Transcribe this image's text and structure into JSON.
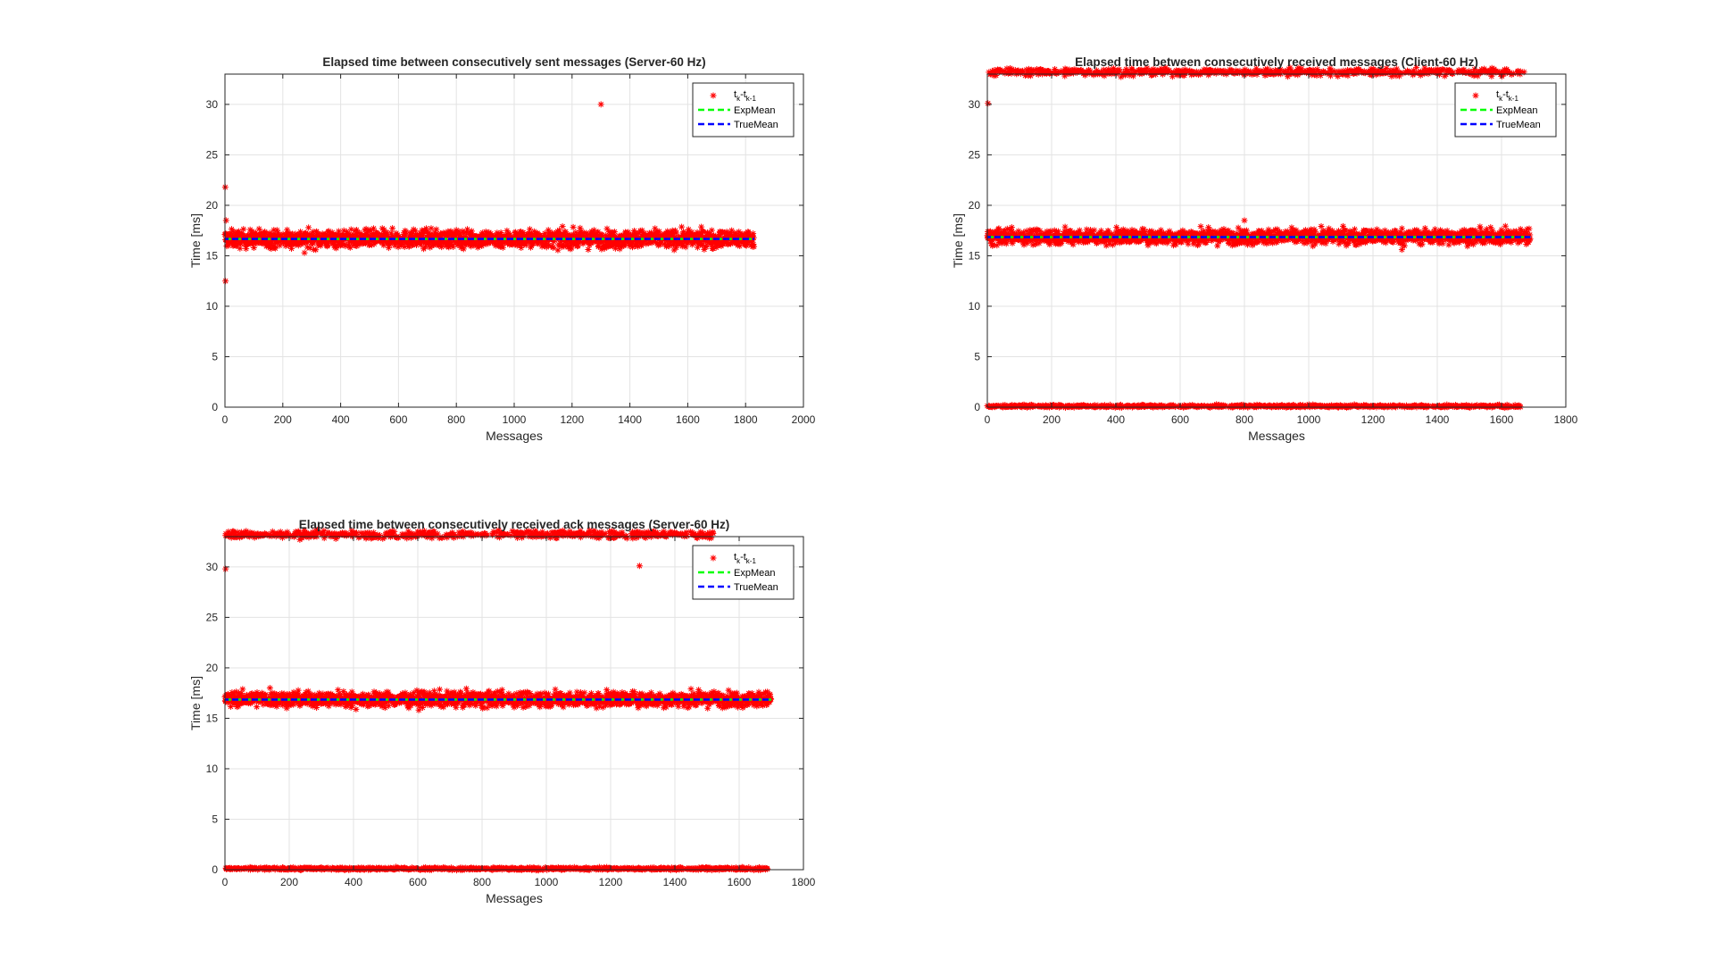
{
  "chart_data": [
    {
      "type": "scatter",
      "title": "Elapsed time between consecutively sent messages (Server-60 Hz)",
      "xlabel": "Messages",
      "ylabel": "Time [ms]",
      "xlim": [
        0,
        2000
      ],
      "ylim": [
        0,
        33
      ],
      "xticks": [
        "0",
        "200",
        "400",
        "600",
        "800",
        "1000",
        "1200",
        "1400",
        "1600",
        "1800",
        "2000"
      ],
      "yticks": [
        "0",
        "5",
        "10",
        "15",
        "20",
        "25",
        "30"
      ],
      "grid": true,
      "legend": {
        "placement": "top-right",
        "entries": [
          {
            "label": "t",
            "sub": "k",
            "label2": "-t",
            "sub2": "k-1"
          },
          {
            "label": "ExpMean"
          },
          {
            "label": "TrueMean"
          }
        ]
      },
      "colors": {
        "points": "#ff0000",
        "exp_mean": "#00ff00",
        "true_mean": "#0000ff"
      },
      "n_points": 1830,
      "bands": [
        {
          "center": 16.67,
          "spread": 0.7
        }
      ],
      "outliers": [
        {
          "x": 1,
          "y": 21.8
        },
        {
          "x": 2,
          "y": 12.5
        },
        {
          "x": 4,
          "y": 18.5
        },
        {
          "x": 275,
          "y": 15.3
        },
        {
          "x": 1300,
          "y": 30.0
        }
      ],
      "exp_mean": 16.67,
      "true_mean": 16.67,
      "mean_x_range": [
        0,
        1830
      ]
    },
    {
      "type": "scatter",
      "title": "Elapsed time between consecutively received messages (Client-60 Hz)",
      "xlabel": "Messages",
      "ylabel": "Time [ms]",
      "xlim": [
        0,
        1800
      ],
      "ylim": [
        0,
        33
      ],
      "xticks": [
        "0",
        "200",
        "400",
        "600",
        "800",
        "1000",
        "1200",
        "1400",
        "1600",
        "1800"
      ],
      "yticks": [
        "0",
        "5",
        "10",
        "15",
        "20",
        "25",
        "30"
      ],
      "grid": true,
      "legend": {
        "placement": "top-right",
        "entries": [
          {
            "label": "t",
            "sub": "k",
            "label2": "-t",
            "sub2": "k-1"
          },
          {
            "label": "ExpMean"
          },
          {
            "label": "TrueMean"
          }
        ]
      },
      "colors": {
        "points": "#ff0000",
        "exp_mean": "#00ff00",
        "true_mean": "#0000ff"
      },
      "n_points": 1690,
      "bands": [
        {
          "center": 33.2,
          "spread": 0.3,
          "x_max": 1660,
          "density": 0.35
        },
        {
          "center": 16.9,
          "spread": 0.6
        },
        {
          "center": 0.1,
          "spread": 0.1,
          "x_max": 1660,
          "density": 0.45
        }
      ],
      "outliers": [
        {
          "x": 2,
          "y": 30.1
        },
        {
          "x": 800,
          "y": 18.5
        },
        {
          "x": 1290,
          "y": 15.6
        },
        {
          "x": 1670,
          "y": 33.2
        }
      ],
      "exp_mean": 16.85,
      "true_mean": 16.85,
      "mean_x_range": [
        0,
        1690
      ]
    },
    {
      "type": "scatter",
      "title": "Elapsed time between consecutively received ack messages (Server-60 Hz)",
      "xlabel": "Messages",
      "ylabel": "Time [ms]",
      "xlim": [
        0,
        1800
      ],
      "ylim": [
        0,
        33
      ],
      "xticks": [
        "0",
        "200",
        "400",
        "600",
        "800",
        "1000",
        "1200",
        "1400",
        "1600",
        "1800"
      ],
      "yticks": [
        "0",
        "5",
        "10",
        "15",
        "20",
        "25",
        "30"
      ],
      "grid": true,
      "legend": {
        "placement": "top-right",
        "entries": [
          {
            "label": "t",
            "sub": "k",
            "label2": "-t",
            "sub2": "k-1"
          },
          {
            "label": "ExpMean"
          },
          {
            "label": "TrueMean"
          }
        ]
      },
      "colors": {
        "points": "#ff0000",
        "exp_mean": "#00ff00",
        "true_mean": "#0000ff"
      },
      "n_points": 1700,
      "bands": [
        {
          "center": 33.2,
          "spread": 0.3,
          "x_max": 1520,
          "density": 0.35
        },
        {
          "center": 16.9,
          "spread": 0.6
        },
        {
          "center": 0.1,
          "spread": 0.1,
          "x_max": 1690,
          "density": 0.5
        }
      ],
      "outliers": [
        {
          "x": 2,
          "y": 29.8
        },
        {
          "x": 1290,
          "y": 30.1
        },
        {
          "x": 140,
          "y": 18.0
        }
      ],
      "exp_mean": 16.85,
      "true_mean": 16.85,
      "mean_x_range": [
        0,
        1700
      ]
    }
  ]
}
